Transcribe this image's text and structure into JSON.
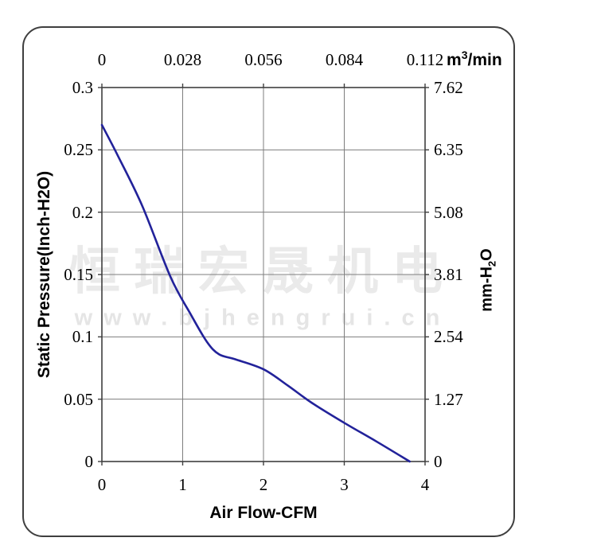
{
  "watermark": {
    "company": "恒瑞宏晟机电",
    "url": "www.bjhengrui.cn"
  },
  "chart_data": {
    "type": "line",
    "title": "",
    "grid": true,
    "x_bottom": {
      "label": "Air Flow-CFM",
      "range": [
        0,
        4
      ],
      "ticks": [
        "0",
        "1",
        "2",
        "3",
        "4"
      ],
      "tick_values": [
        0,
        1,
        2,
        3,
        4
      ]
    },
    "x_top": {
      "unit_base": "m",
      "unit_sup": "3",
      "unit_rest": "/min",
      "range": [
        0,
        0.112
      ],
      "ticks": [
        "0",
        "0.028",
        "0.056",
        "0.084",
        "0.112"
      ]
    },
    "y_left": {
      "label": "Static Pressure(Inch-H2O)",
      "range": [
        0,
        0.3
      ],
      "ticks": [
        "0.3",
        "0.25",
        "0.2",
        "0.15",
        "0.1",
        "0.05",
        "0"
      ],
      "tick_values": [
        0.3,
        0.25,
        0.2,
        0.15,
        0.1,
        0.05,
        0
      ]
    },
    "y_right": {
      "label_base": "mm-H",
      "label_sub": "2",
      "label_rest": "O",
      "range": [
        0,
        7.62
      ],
      "ticks": [
        "7.62",
        "6.35",
        "5.08",
        "3.81",
        "2.54",
        "1.27",
        "0"
      ]
    },
    "series": [
      {
        "name": "static-pressure-vs-airflow",
        "color": "#22229a",
        "points": [
          [
            0,
            0.27
          ],
          [
            0.2,
            0.245
          ],
          [
            0.5,
            0.205
          ],
          [
            0.85,
            0.148
          ],
          [
            1.1,
            0.118
          ],
          [
            1.3,
            0.096
          ],
          [
            1.45,
            0.086
          ],
          [
            1.65,
            0.082
          ],
          [
            2.0,
            0.074
          ],
          [
            2.3,
            0.061
          ],
          [
            2.6,
            0.047
          ],
          [
            3.0,
            0.031
          ],
          [
            3.4,
            0.016
          ],
          [
            3.81,
            0
          ]
        ]
      }
    ]
  }
}
